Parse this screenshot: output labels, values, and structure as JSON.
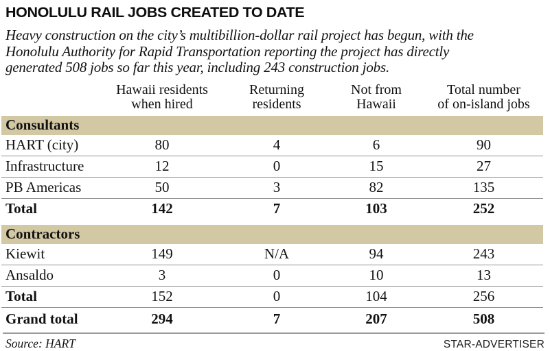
{
  "title": "HONOLULU RAIL JOBS CREATED TO DATE",
  "intro": "Heavy construction on the city’s multibillion-dollar rail project has begun, with the\nHonolulu Authority for Rapid Transportation reporting the project has directly\ngenerated 508 jobs so far this year, including 243 construction jobs.",
  "colors": {
    "section_band": "#d2c8a4",
    "row_rule": "#8f8f8f",
    "footer_rule": "#9a9a9a",
    "text": "#121212"
  },
  "table": {
    "columns": [
      "",
      "Hawaii residents\nwhen hired",
      "Returning\nresidents",
      "Not from\nHawaii",
      "Total number\nof on-island jobs"
    ],
    "sections": [
      {
        "name": "Consultants",
        "rows": [
          {
            "label": "HART (city)",
            "values": [
              "80",
              "4",
              "6",
              "90"
            ]
          },
          {
            "label": "Infrastructure",
            "values": [
              "12",
              "0",
              "15",
              "27"
            ]
          },
          {
            "label": "PB Americas",
            "values": [
              "50",
              "3",
              "82",
              "135"
            ]
          }
        ],
        "total": {
          "label": "Total",
          "values": [
            "142",
            "7",
            "103",
            "252"
          ]
        }
      },
      {
        "name": "Contractors",
        "rows": [
          {
            "label": "Kiewit",
            "values": [
              "149",
              "N/A",
              "94",
              "243"
            ]
          },
          {
            "label": "Ansaldo",
            "values": [
              "3",
              "0",
              "10",
              "13"
            ]
          }
        ],
        "total": {
          "label": "Total",
          "values": [
            "152",
            "0",
            "104",
            "256"
          ]
        }
      }
    ],
    "grand_total": {
      "label": "Grand total",
      "values": [
        "294",
        "7",
        "207",
        "508"
      ]
    }
  },
  "footer": {
    "source": "Source: HART",
    "credit": "STAR-ADVERTISER"
  },
  "chart_data": {
    "type": "table",
    "title": "HONOLULU RAIL JOBS CREATED TO DATE",
    "subtitle": "Heavy construction on the city’s multibillion-dollar rail project has begun, with the Honolulu Authority for Rapid Transportation reporting the project has directly generated 508 jobs so far this year, including 243 construction jobs.",
    "columns": [
      "Hawaii residents when hired",
      "Returning residents",
      "Not from Hawaii",
      "Total number of on-island jobs"
    ],
    "sections": [
      {
        "name": "Consultants",
        "rows": [
          {
            "label": "HART (city)",
            "values": [
              80,
              4,
              6,
              90
            ]
          },
          {
            "label": "Infrastructure",
            "values": [
              12,
              0,
              15,
              27
            ]
          },
          {
            "label": "PB Americas",
            "values": [
              50,
              3,
              82,
              135
            ]
          }
        ],
        "total": {
          "label": "Total",
          "values": [
            142,
            7,
            103,
            252
          ]
        }
      },
      {
        "name": "Contractors",
        "rows": [
          {
            "label": "Kiewit",
            "values": [
              149,
              "N/A",
              94,
              243
            ]
          },
          {
            "label": "Ansaldo",
            "values": [
              3,
              0,
              10,
              13
            ]
          }
        ],
        "total": {
          "label": "Total",
          "values": [
            152,
            0,
            104,
            256
          ]
        }
      }
    ],
    "grand_total": {
      "label": "Grand total",
      "values": [
        294,
        7,
        207,
        508
      ]
    },
    "source": "HART",
    "credit": "STAR-ADVERTISER"
  }
}
